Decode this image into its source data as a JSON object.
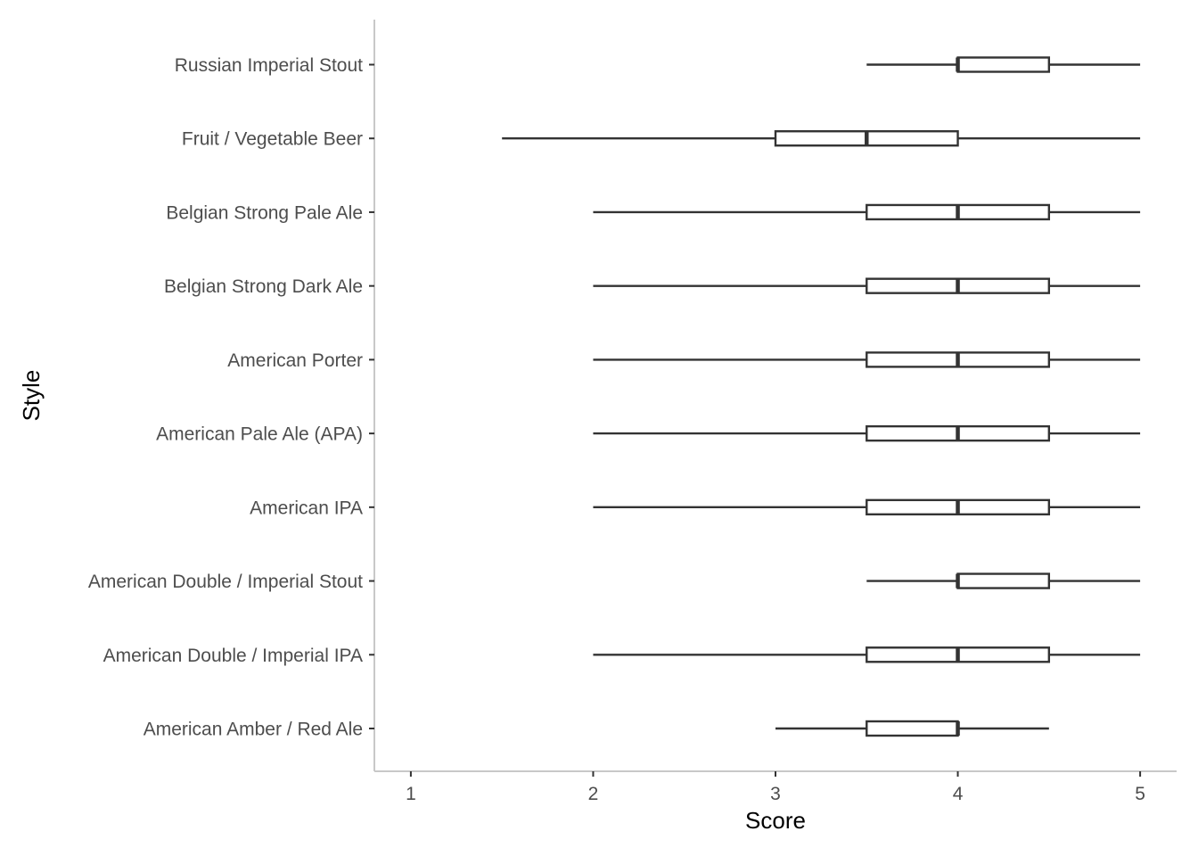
{
  "chart_data": {
    "type": "boxplot",
    "orientation": "horizontal",
    "xlabel": "Score",
    "ylabel": "Style",
    "xlim": [
      0.8,
      5.2
    ],
    "x_ticks": [
      1,
      2,
      3,
      4,
      5
    ],
    "grid": false,
    "categories": [
      "American Amber / Red Ale",
      "American Double / Imperial IPA",
      "American Double / Imperial Stout",
      "American IPA",
      "American Pale Ale (APA)",
      "American Porter",
      "Belgian Strong Dark Ale",
      "Belgian Strong Pale Ale",
      "Fruit / Vegetable Beer",
      "Russian Imperial Stout"
    ],
    "boxes": [
      {
        "min": 3.0,
        "q1": 3.5,
        "median": 4.0,
        "q3": 4.0,
        "max": 4.5
      },
      {
        "min": 2.0,
        "q1": 3.5,
        "median": 4.0,
        "q3": 4.5,
        "max": 5.0
      },
      {
        "min": 3.5,
        "q1": 4.0,
        "median": 4.0,
        "q3": 4.5,
        "max": 5.0
      },
      {
        "min": 2.0,
        "q1": 3.5,
        "median": 4.0,
        "q3": 4.5,
        "max": 5.0
      },
      {
        "min": 2.0,
        "q1": 3.5,
        "median": 4.0,
        "q3": 4.5,
        "max": 5.0
      },
      {
        "min": 2.0,
        "q1": 3.5,
        "median": 4.0,
        "q3": 4.5,
        "max": 5.0
      },
      {
        "min": 2.0,
        "q1": 3.5,
        "median": 4.0,
        "q3": 4.5,
        "max": 5.0
      },
      {
        "min": 2.0,
        "q1": 3.5,
        "median": 4.0,
        "q3": 4.5,
        "max": 5.0
      },
      {
        "min": 1.5,
        "q1": 3.0,
        "median": 3.5,
        "q3": 4.0,
        "max": 5.0
      },
      {
        "min": 3.5,
        "q1": 4.0,
        "median": 4.0,
        "q3": 4.5,
        "max": 5.0
      }
    ],
    "colors": {
      "line": "#333333",
      "axis": "#c8c8c8",
      "tick_label": "#4d4d4d",
      "fill": "#ffffff"
    }
  }
}
